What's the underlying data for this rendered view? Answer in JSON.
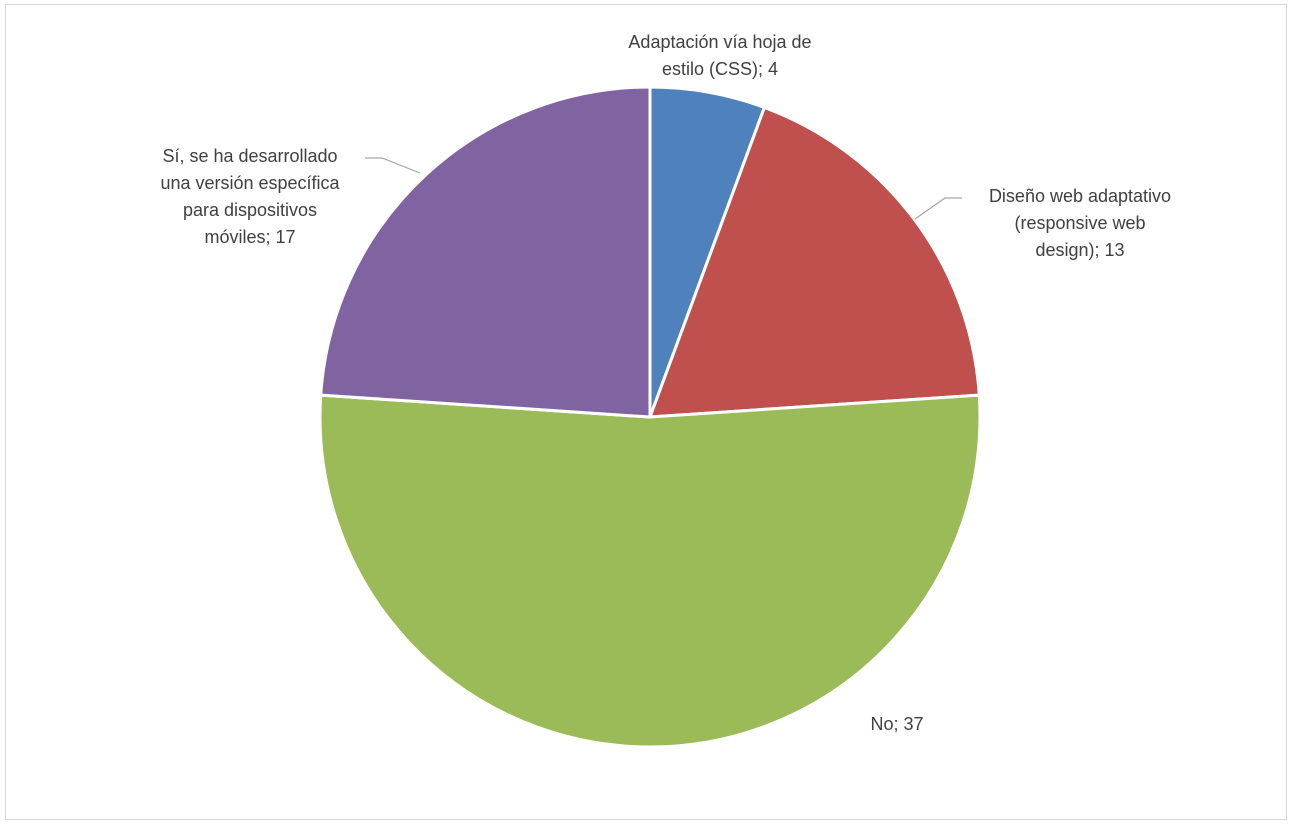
{
  "chart_data": {
    "type": "pie",
    "title": "",
    "slices": [
      {
        "label_lines": [
          "Adaptación vía hoja de",
          "estilo (CSS); 4"
        ],
        "category": "Adaptación vía hoja de estilo (CSS)",
        "value": 4,
        "color": "#4f81bd"
      },
      {
        "label_lines": [
          "Diseño web adaptativo",
          "(responsive web",
          "design); 13"
        ],
        "category": "Diseño web adaptativo (responsive web design)",
        "value": 13,
        "color": "#c0504d"
      },
      {
        "label_lines": [
          "No; 37"
        ],
        "category": "No",
        "value": 37,
        "color": "#9bbb59"
      },
      {
        "label_lines": [
          "Sí, se ha desarrollado",
          "una versión específica",
          "para dispositivos",
          "móviles; 17"
        ],
        "category": "Sí, se ha desarrollado una versión específica para dispositivos móviles",
        "value": 17,
        "color": "#8064a2"
      }
    ],
    "legend": "none",
    "data_labels": "category; value"
  }
}
